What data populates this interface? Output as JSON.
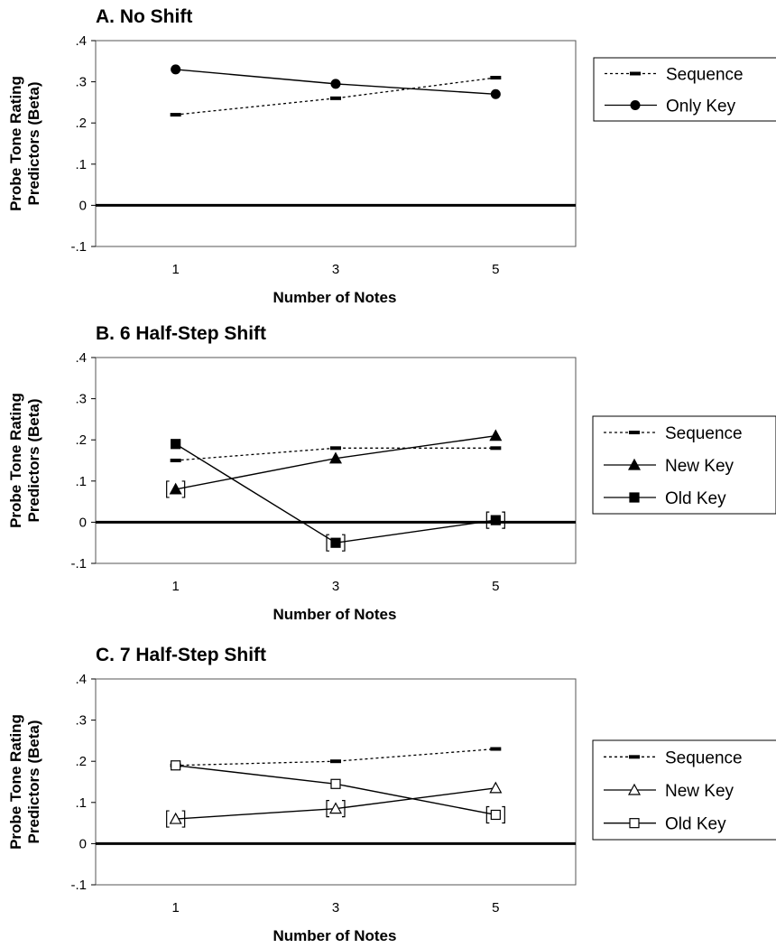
{
  "figure": {
    "xlabel": "Number of Notes",
    "ylabel_line1": "Probe Tone Rating",
    "ylabel_line2": "Predictors (Beta)"
  },
  "chart_data": [
    {
      "type": "line",
      "title": "A. No Shift",
      "xlabel": "Number of Notes",
      "ylabel": "Probe Tone Rating Predictors (Beta)",
      "x": [
        1,
        3,
        5
      ],
      "xlim": [
        0,
        6
      ],
      "ylim": [
        -0.1,
        0.4
      ],
      "yticks": [
        -0.1,
        0,
        0.1,
        0.2,
        0.3,
        0.4
      ],
      "ytick_labels": [
        "-.1",
        "0",
        ".1",
        ".2",
        ".3",
        ".4"
      ],
      "xtick_labels": [
        "1",
        "3",
        "5"
      ],
      "grid": false,
      "legend_position": "right",
      "series": [
        {
          "name": "Sequence",
          "values": [
            0.22,
            0.26,
            0.31
          ],
          "line": "dotted",
          "marker": "dash",
          "bracketed": [
            false,
            false,
            false
          ]
        },
        {
          "name": "Only Key",
          "values": [
            0.33,
            0.295,
            0.27
          ],
          "line": "solid",
          "marker": "filled-circle",
          "bracketed": [
            false,
            false,
            false
          ]
        }
      ]
    },
    {
      "type": "line",
      "title": "B. 6 Half-Step Shift",
      "xlabel": "Number of Notes",
      "ylabel": "Probe Tone Rating Predictors (Beta)",
      "x": [
        1,
        3,
        5
      ],
      "xlim": [
        0,
        6
      ],
      "ylim": [
        -0.1,
        0.4
      ],
      "yticks": [
        -0.1,
        0,
        0.1,
        0.2,
        0.3,
        0.4
      ],
      "ytick_labels": [
        "-.1",
        "0",
        ".1",
        ".2",
        ".3",
        ".4"
      ],
      "xtick_labels": [
        "1",
        "3",
        "5"
      ],
      "grid": false,
      "legend_position": "right",
      "series": [
        {
          "name": "Sequence",
          "values": [
            0.15,
            0.18,
            0.18
          ],
          "line": "dotted",
          "marker": "dash",
          "bracketed": [
            false,
            false,
            false
          ]
        },
        {
          "name": "New Key",
          "values": [
            0.08,
            0.155,
            0.21
          ],
          "line": "solid",
          "marker": "filled-triangle",
          "bracketed": [
            true,
            false,
            false
          ]
        },
        {
          "name": "Old Key",
          "values": [
            0.19,
            -0.05,
            0.005
          ],
          "line": "solid",
          "marker": "filled-square",
          "bracketed": [
            false,
            true,
            true
          ]
        }
      ]
    },
    {
      "type": "line",
      "title": "C. 7 Half-Step Shift",
      "xlabel": "Number of Notes",
      "ylabel": "Probe Tone Rating Predictors (Beta)",
      "x": [
        1,
        3,
        5
      ],
      "xlim": [
        0,
        6
      ],
      "ylim": [
        -0.1,
        0.4
      ],
      "yticks": [
        -0.1,
        0,
        0.1,
        0.2,
        0.3,
        0.4
      ],
      "ytick_labels": [
        "-.1",
        "0",
        ".1",
        ".2",
        ".3",
        ".4"
      ],
      "xtick_labels": [
        "1",
        "3",
        "5"
      ],
      "grid": false,
      "legend_position": "right",
      "series": [
        {
          "name": "Sequence",
          "values": [
            0.19,
            0.2,
            0.23
          ],
          "line": "dotted",
          "marker": "dash",
          "bracketed": [
            false,
            false,
            false
          ]
        },
        {
          "name": "New Key",
          "values": [
            0.06,
            0.085,
            0.135
          ],
          "line": "solid",
          "marker": "open-triangle",
          "bracketed": [
            true,
            true,
            false
          ]
        },
        {
          "name": "Old Key",
          "values": [
            0.19,
            0.145,
            0.07
          ],
          "line": "solid",
          "marker": "open-square",
          "bracketed": [
            false,
            false,
            true
          ]
        }
      ]
    }
  ]
}
